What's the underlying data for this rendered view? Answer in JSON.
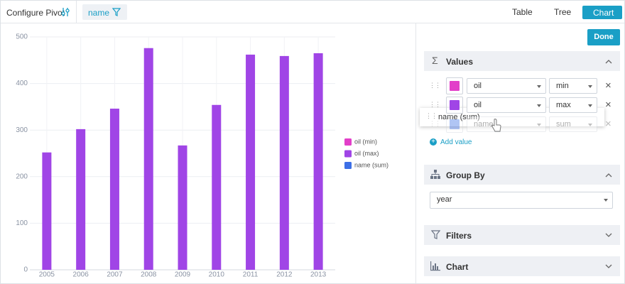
{
  "toolbar": {
    "title": "Configure Pivot",
    "chip": "name",
    "views": [
      "Table",
      "Tree",
      "Chart"
    ]
  },
  "chart_data": {
    "type": "bar",
    "categories": [
      "2005",
      "2006",
      "2007",
      "2008",
      "2009",
      "2010",
      "2011",
      "2012",
      "2013"
    ],
    "series": [
      {
        "name": "oil (min)",
        "color": "#e23fc9",
        "values": [
          null,
          null,
          null,
          null,
          null,
          null,
          null,
          null,
          null
        ]
      },
      {
        "name": "oil (max)",
        "color": "#a045e6",
        "values": [
          252,
          302,
          346,
          476,
          267,
          354,
          462,
          459,
          465
        ]
      },
      {
        "name": "name (sum)",
        "color": "#3d6fe6",
        "values": [
          null,
          null,
          null,
          null,
          null,
          null,
          null,
          null,
          null
        ]
      }
    ],
    "ylim": [
      0,
      500
    ],
    "yticks": [
      0,
      100,
      200,
      300,
      400,
      500
    ],
    "grid": true,
    "legend": "right"
  },
  "panel": {
    "done": "Done",
    "values": {
      "title": "Values",
      "rows": [
        {
          "field": "oil",
          "op": "min"
        },
        {
          "field": "oil",
          "op": "max"
        },
        {
          "field": "name",
          "op": "sum"
        }
      ],
      "dragging": "name (sum)",
      "add": "Add value"
    },
    "group_by": {
      "title": "Group By",
      "field": "year"
    },
    "filters": {
      "title": "Filters"
    },
    "chart": {
      "title": "Chart"
    }
  }
}
